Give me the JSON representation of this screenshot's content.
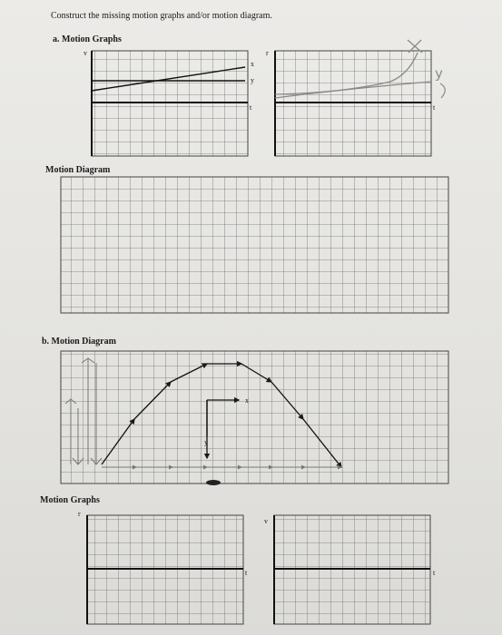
{
  "instructions": "Construct the missing motion graphs and/or motion diagram.",
  "part_a": {
    "heading": "a. Motion Graphs",
    "graph_left": {
      "y_axis": "v",
      "t_axis": "t",
      "line_labels": [
        "x",
        "y"
      ]
    },
    "graph_right": {
      "y_axis": "r",
      "t_axis": "t"
    },
    "handwritten": [
      "X",
      "y"
    ],
    "diagram_heading": "Motion Diagram"
  },
  "part_b": {
    "heading": "b. Motion Diagram",
    "axis_labels": [
      "x",
      "y"
    ],
    "graphs_heading": "Motion Graphs",
    "graph_left": {
      "y_axis": "r",
      "t_axis": "t"
    },
    "graph_right": {
      "y_axis": "v",
      "t_axis": "t"
    }
  }
}
